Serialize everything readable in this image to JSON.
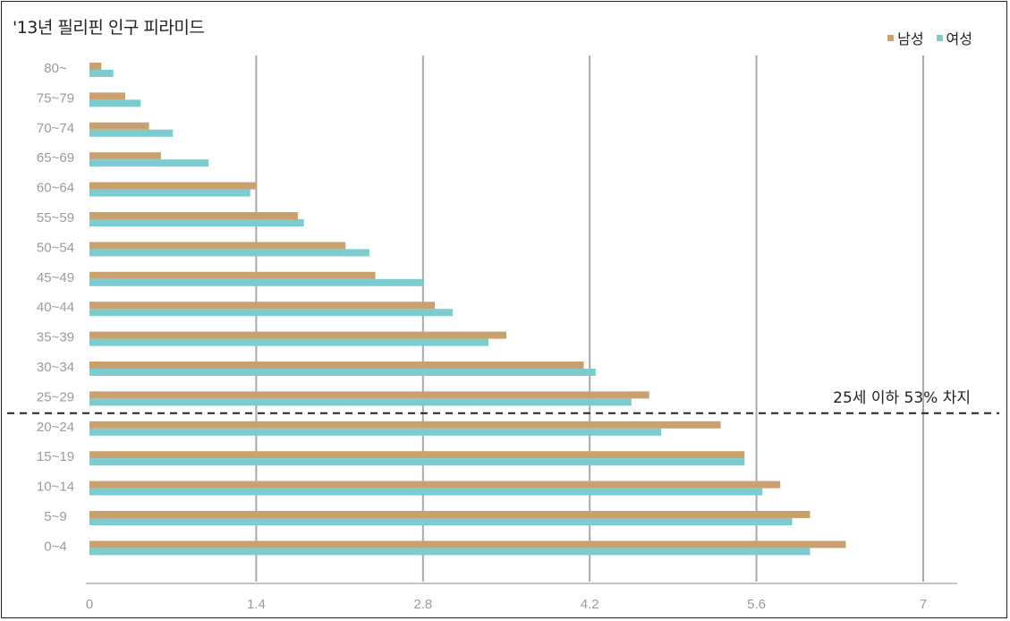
{
  "chart_data": {
    "type": "bar",
    "orientation": "horizontal",
    "title": "'13년 필리핀 인구 피라미드",
    "categories": [
      "80~",
      "75~79",
      "70~74",
      "65~69",
      "60~64",
      "55~59",
      "50~54",
      "45~49",
      "40~44",
      "35~39",
      "30~34",
      "25~29",
      "20~24",
      "15~19",
      "10~14",
      "5~9",
      "0~4"
    ],
    "series": [
      {
        "name": "남성",
        "color": "#C9A16F",
        "values": [
          0.1,
          0.3,
          0.5,
          0.6,
          1.4,
          1.75,
          2.15,
          2.4,
          2.9,
          3.5,
          4.15,
          4.7,
          5.3,
          5.5,
          5.8,
          6.05,
          6.35
        ]
      },
      {
        "name": "여성",
        "color": "#7CCBCF",
        "values": [
          0.2,
          0.43,
          0.7,
          1.0,
          1.35,
          1.8,
          2.35,
          2.8,
          3.05,
          3.35,
          4.25,
          4.55,
          4.8,
          5.5,
          5.65,
          5.9,
          6.05
        ]
      }
    ],
    "xticks": [
      "0",
      "1.4",
      "2.8",
      "4.2",
      "5.6",
      "7"
    ],
    "xlim": [
      0,
      7
    ],
    "grid": "vertical",
    "legend": "top-right",
    "annotation": {
      "text": "25세 이하 53% 차지",
      "between": [
        "25~29",
        "20~24"
      ]
    }
  }
}
